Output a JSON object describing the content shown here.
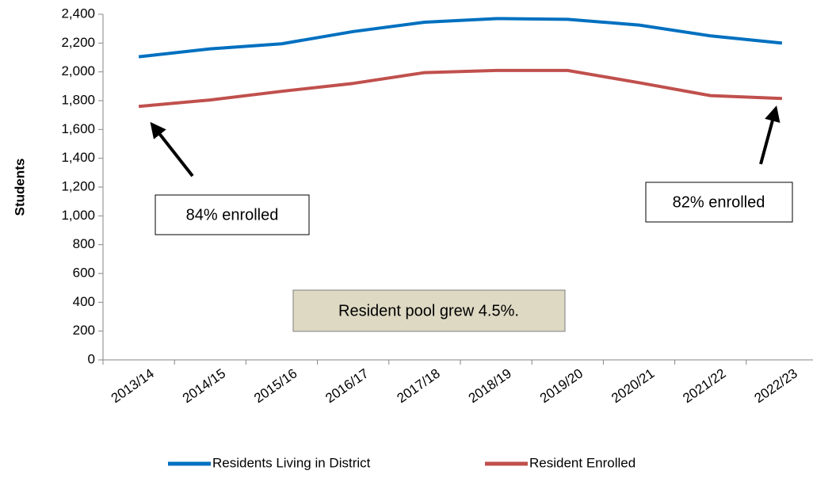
{
  "chart_data": {
    "type": "line",
    "y_label": "Students",
    "categories": [
      "2013/14",
      "2014/15",
      "2015/16",
      "2016/17",
      "2017/18",
      "2018/19",
      "2019/20",
      "2020/21",
      "2021/22",
      "2022/23"
    ],
    "series": [
      {
        "name": "Residents Living in District",
        "color": "#0070c0",
        "values": [
          2105,
          2160,
          2195,
          2280,
          2345,
          2370,
          2365,
          2325,
          2250,
          2200
        ]
      },
      {
        "name": "Resident Enrolled",
        "color": "#c0504d",
        "values": [
          1760,
          1805,
          1865,
          1920,
          1995,
          2010,
          2010,
          1925,
          1835,
          1815
        ]
      }
    ],
    "ylim": [
      0,
      2400
    ],
    "yticks": [
      0,
      200,
      400,
      600,
      800,
      {
        "value": 1000,
        "label": "1,000"
      },
      {
        "value": 1200,
        "label": "1,200"
      },
      {
        "value": 1400,
        "label": "1,400"
      },
      {
        "value": 1600,
        "label": "1,600"
      },
      {
        "value": 1800,
        "label": "1,800"
      },
      {
        "value": 2000,
        "label": "2,000"
      },
      {
        "value": 2200,
        "label": "2,200"
      },
      {
        "value": 2400,
        "label": "2,400"
      }
    ],
    "grid": false,
    "legend": "bottom",
    "annotations": [
      "84% enrolled",
      "82% enrolled",
      "Resident pool grew 4.5%."
    ]
  }
}
